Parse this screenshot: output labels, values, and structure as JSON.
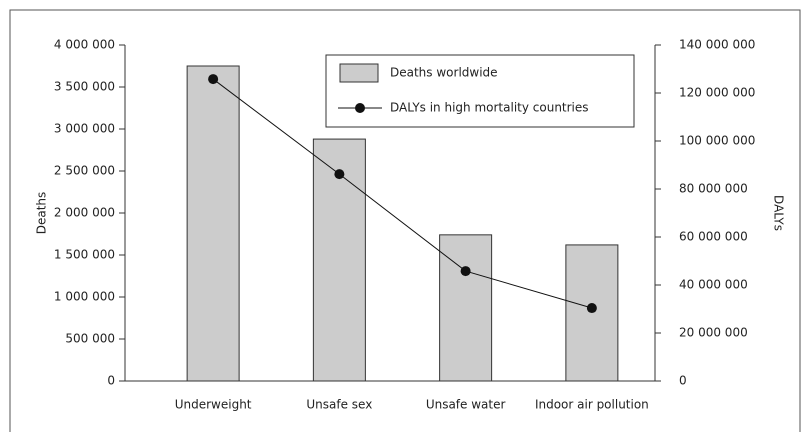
{
  "chart_data": {
    "type": "bar",
    "categories": [
      "Underweight",
      "Unsafe sex",
      "Unsafe water",
      "Indoor air pollution"
    ],
    "series": [
      {
        "name": "Deaths worldwide",
        "type": "bar",
        "color": "#cccccc",
        "values": [
          3750000,
          2880000,
          1740000,
          1620000
        ]
      },
      {
        "name": "DALYs in high mortality countries",
        "type": "line",
        "axis": "y2",
        "color": "#111111",
        "values": [
          125800000,
          86200000,
          45800000,
          30400000
        ]
      }
    ],
    "ylabel": "Deaths",
    "y2label": "DALYs",
    "ylim": [
      0,
      4000000
    ],
    "yticks": [
      0,
      {
        "value": 500000,
        "label": "500 000"
      },
      {
        "value": 1000000,
        "label": "1 000 000"
      },
      {
        "value": 1500000,
        "label": "1 500 000"
      },
      {
        "value": 2000000,
        "label": "2 000 000"
      },
      {
        "value": 2500000,
        "label": "2 500 000"
      },
      {
        "value": 3000000,
        "label": "3 000 000"
      },
      {
        "value": 3500000,
        "label": "3 500 000"
      },
      {
        "value": 4000000,
        "label": "4 000 000"
      }
    ],
    "y2lim": [
      0,
      140000000
    ],
    "y2ticks": [
      0,
      {
        "value": 20000000,
        "label": "20 000 000"
      },
      {
        "value": 40000000,
        "label": "40 000 000"
      },
      {
        "value": 60000000,
        "label": "60 000 000"
      },
      {
        "value": 80000000,
        "label": "80 000 000"
      },
      {
        "value": 100000000,
        "label": "100 000 000"
      },
      {
        "value": 120000000,
        "label": "120 000 000"
      },
      {
        "value": 140000000,
        "label": "140 000 000"
      }
    ],
    "legend": "top-right"
  }
}
